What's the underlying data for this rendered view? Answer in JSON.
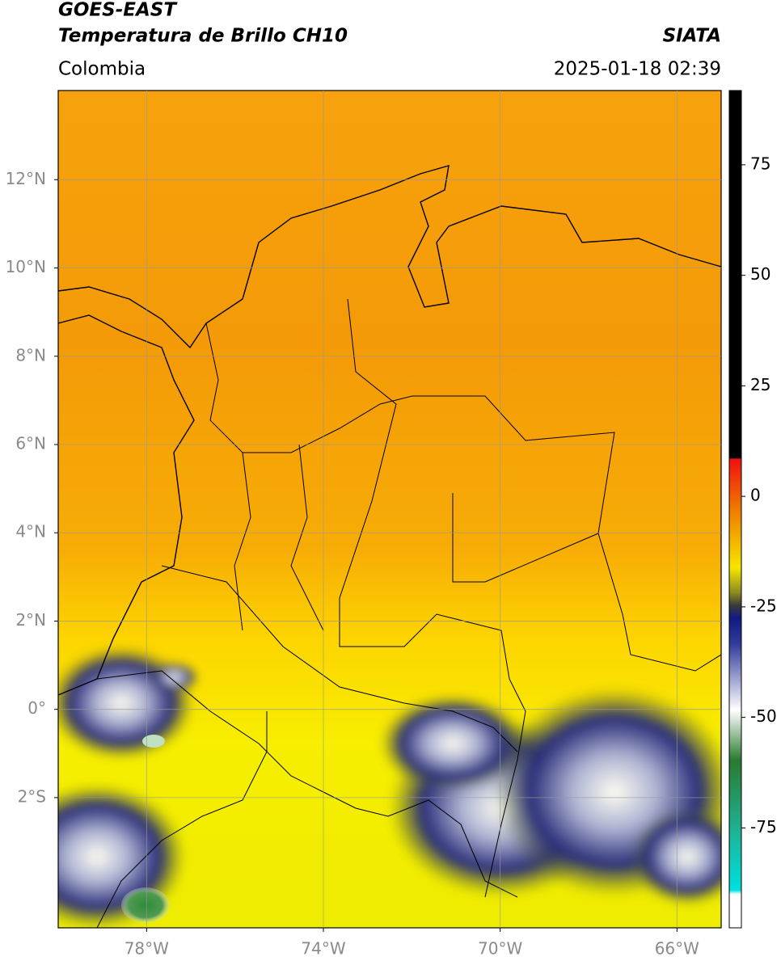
{
  "header": {
    "title": "GOES-EAST",
    "subtitle": "Temperatura de Brillo CH10",
    "source": "SIATA",
    "region": "Colombia",
    "datetime": "2025-01-18 02:39"
  },
  "map": {
    "xlim": [
      -80,
      -65
    ],
    "ylim": [
      -4.95,
      14.02
    ],
    "xticks": [
      {
        "value": -78,
        "label": "78°W"
      },
      {
        "value": -74,
        "label": "74°W"
      },
      {
        "value": -70,
        "label": "70°W"
      },
      {
        "value": -66,
        "label": "66°W"
      }
    ],
    "yticks": [
      {
        "value": -2,
        "label": "2°S"
      },
      {
        "value": 0,
        "label": "0°"
      },
      {
        "value": 2,
        "label": "2°N"
      },
      {
        "value": 4,
        "label": "4°N"
      },
      {
        "value": 6,
        "label": "6°N"
      },
      {
        "value": 8,
        "label": "8°N"
      },
      {
        "value": 10,
        "label": "10°N"
      },
      {
        "value": 12,
        "label": "12°N"
      }
    ]
  },
  "colorbar": {
    "lim": [
      -97.6,
      91.8
    ],
    "ticks": [
      75,
      50,
      25,
      0,
      -25,
      -50,
      -75
    ]
  }
}
